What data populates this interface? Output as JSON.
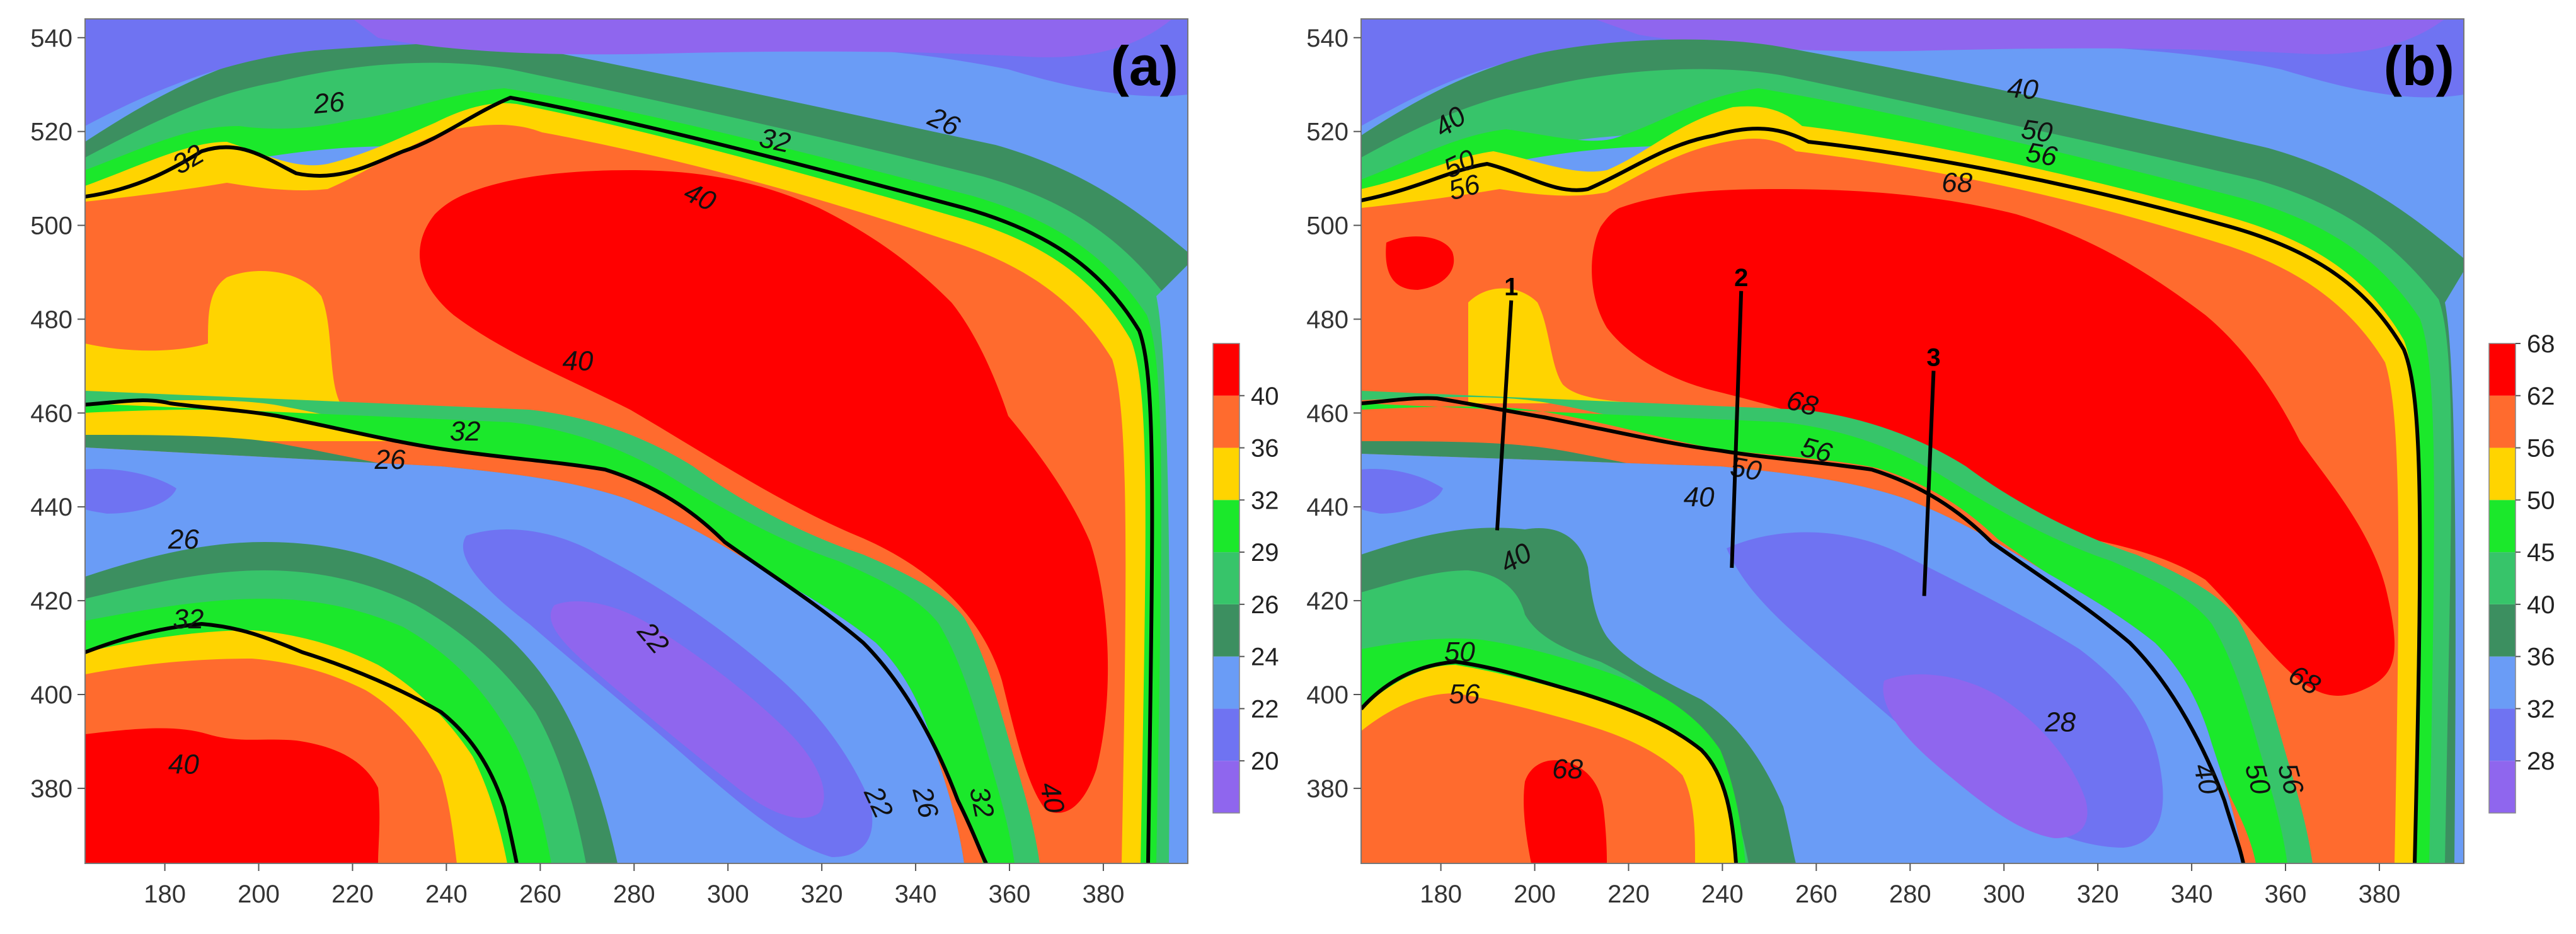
{
  "chart_data": [
    {
      "type": "heatmap",
      "subtype": "filled-contour",
      "panel_label": "(a)",
      "x_range": [
        163,
        398
      ],
      "y_range": [
        364,
        544
      ],
      "x_ticks": [
        180,
        200,
        220,
        240,
        260,
        280,
        300,
        320,
        340,
        360,
        380
      ],
      "y_ticks": [
        380,
        400,
        420,
        440,
        460,
        480,
        500,
        520,
        540
      ],
      "levels": [
        20,
        22,
        24,
        26,
        29,
        32,
        36,
        40
      ],
      "level_colors": [
        "#8f66ee",
        "#6f73f2",
        "#6a9cf6",
        "#3c8f60",
        "#37c46a",
        "#1be82b",
        "#ffd400",
        "#ff6b2e",
        "#ff0000"
      ],
      "colorbar_labels": [
        "20",
        "22",
        "24",
        "26",
        "29",
        "32",
        "36",
        "40"
      ],
      "contour_labels": [
        {
          "text": "26",
          "x": 215,
          "y": 526,
          "angle": -5
        },
        {
          "text": "32",
          "x": 185,
          "y": 514,
          "angle": -30
        },
        {
          "text": "32",
          "x": 310,
          "y": 518,
          "angle": 12
        },
        {
          "text": "26",
          "x": 346,
          "y": 522,
          "angle": 25
        },
        {
          "text": "40",
          "x": 294,
          "y": 506,
          "angle": 25
        },
        {
          "text": "40",
          "x": 268,
          "y": 471,
          "angle": 0
        },
        {
          "text": "32",
          "x": 244,
          "y": 456,
          "angle": 0
        },
        {
          "text": "26",
          "x": 228,
          "y": 450,
          "angle": 0
        },
        {
          "text": "26",
          "x": 184,
          "y": 433,
          "angle": 0
        },
        {
          "text": "32",
          "x": 185,
          "y": 416,
          "angle": 0
        },
        {
          "text": "40",
          "x": 184,
          "y": 385,
          "angle": 0
        },
        {
          "text": "22",
          "x": 284,
          "y": 412,
          "angle": 50
        },
        {
          "text": "22",
          "x": 332,
          "y": 377,
          "angle": 65
        },
        {
          "text": "26",
          "x": 342,
          "y": 377,
          "angle": 75
        },
        {
          "text": "32",
          "x": 354,
          "y": 377,
          "angle": 78
        },
        {
          "text": "40",
          "x": 369,
          "y": 378,
          "angle": 78
        }
      ],
      "section_lines": []
    },
    {
      "type": "heatmap",
      "subtype": "filled-contour",
      "panel_label": "(b)",
      "x_range": [
        163,
        398
      ],
      "y_range": [
        364,
        544
      ],
      "x_ticks": [
        180,
        200,
        220,
        240,
        260,
        280,
        300,
        320,
        340,
        360,
        380
      ],
      "y_ticks": [
        380,
        400,
        420,
        440,
        460,
        480,
        500,
        520,
        540
      ],
      "levels": [
        28,
        32,
        36,
        40,
        45,
        50,
        56,
        62,
        68
      ],
      "level_colors": [
        "#8f66ee",
        "#6f73f2",
        "#6a9cf6",
        "#3c8f60",
        "#37c46a",
        "#1be82b",
        "#ffd400",
        "#ff6b2e",
        "#ff0000"
      ],
      "colorbar_labels": [
        "28",
        "32",
        "36",
        "40",
        "45",
        "50",
        "56",
        "62",
        "68"
      ],
      "contour_labels": [
        {
          "text": "40",
          "x": 182,
          "y": 522,
          "angle": -35
        },
        {
          "text": "50",
          "x": 184,
          "y": 513,
          "angle": -25
        },
        {
          "text": "56",
          "x": 185,
          "y": 508,
          "angle": -15
        },
        {
          "text": "40",
          "x": 304,
          "y": 529,
          "angle": 5
        },
        {
          "text": "50",
          "x": 307,
          "y": 520,
          "angle": 8
        },
        {
          "text": "56",
          "x": 308,
          "y": 515,
          "angle": 10
        },
        {
          "text": "68",
          "x": 290,
          "y": 509,
          "angle": 0
        },
        {
          "text": "68",
          "x": 257,
          "y": 462,
          "angle": 15
        },
        {
          "text": "56",
          "x": 260,
          "y": 452,
          "angle": 15
        },
        {
          "text": "50",
          "x": 245,
          "y": 448,
          "angle": 10
        },
        {
          "text": "40",
          "x": 235,
          "y": 442,
          "angle": 0
        },
        {
          "text": "40",
          "x": 196,
          "y": 429,
          "angle": -30
        },
        {
          "text": "50",
          "x": 184,
          "y": 409,
          "angle": 0
        },
        {
          "text": "56",
          "x": 185,
          "y": 400,
          "angle": 0
        },
        {
          "text": "68",
          "x": 207,
          "y": 384,
          "angle": 0
        },
        {
          "text": "28",
          "x": 312,
          "y": 394,
          "angle": 0
        },
        {
          "text": "40",
          "x": 343,
          "y": 382,
          "angle": 75
        },
        {
          "text": "50",
          "x": 354,
          "y": 382,
          "angle": 75
        },
        {
          "text": "56",
          "x": 361,
          "y": 382,
          "angle": 75
        },
        {
          "text": "68",
          "x": 364,
          "y": 403,
          "angle": 30
        }
      ],
      "section_lines": [
        {
          "label": "1",
          "x1": 195,
          "y1": 484,
          "x2": 192,
          "y2": 435
        },
        {
          "label": "2",
          "x1": 244,
          "y1": 486,
          "x2": 242,
          "y2": 427
        },
        {
          "label": "3",
          "x1": 285,
          "y1": 469,
          "x2": 283,
          "y2": 421
        }
      ]
    }
  ]
}
